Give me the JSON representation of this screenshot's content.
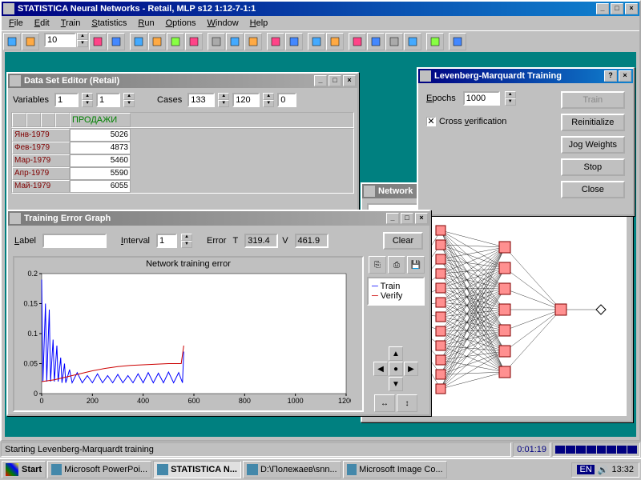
{
  "app": {
    "title": "STATISTICA Neural Networks - Retail, MLP s12 1:12-7-1:1",
    "menu": [
      "File",
      "Edit",
      "Train",
      "Statistics",
      "Run",
      "Options",
      "Window",
      "Help"
    ],
    "case_no": "10",
    "toolbar_icons": [
      "open",
      "save",
      "sep",
      "grid",
      "table",
      "sep",
      "net1",
      "net2",
      "net3",
      "net4",
      "sep",
      "sc1",
      "sc2",
      "sc3",
      "sep",
      "run",
      "stop",
      "sep",
      "chart",
      "bar",
      "sep",
      "hist",
      "plot",
      "line",
      "grid2",
      "sep",
      "tool",
      "sep",
      "arrow"
    ]
  },
  "dataset": {
    "title": "Data Set Editor (Retail)",
    "vars_label": "Variables",
    "var_a": "1",
    "var_b": "1",
    "cases_label": "Cases",
    "case_a": "133",
    "case_b": "120",
    "case_c": "0",
    "col_header": "ПРОДАЖИ",
    "rows": [
      {
        "m": "Янв-1979",
        "v": "5026"
      },
      {
        "m": "Фев-1979",
        "v": "4873"
      },
      {
        "m": "Мар-1979",
        "v": "5460"
      },
      {
        "m": "Апр-1979",
        "v": "5590"
      },
      {
        "m": "Май-1979",
        "v": "6055"
      }
    ]
  },
  "lm": {
    "title": "Levenberg-Marquardt Training",
    "epochs_label": "Epochs",
    "epochs": "1000",
    "cross_label": "Cross verification",
    "cross_checked": true,
    "buttons": [
      "Train",
      "Reinitialize",
      "Jog Weights",
      "Stop",
      "Close"
    ]
  },
  "network_win": {
    "title": "Network"
  },
  "error_graph": {
    "title": "Training Error Graph",
    "label_label": "Label",
    "label_value": "",
    "interval_label": "Interval",
    "interval": "1",
    "error_label": "Error",
    "t_label": "T",
    "t_val": "319.4",
    "v_label": "V",
    "v_val": "461.9",
    "clear": "Clear",
    "chart_title": "Network training error",
    "legend": [
      "Train",
      "Verify"
    ],
    "chart": {
      "type": "line",
      "xlim": [
        0,
        1200
      ],
      "xticks": [
        0,
        200,
        400,
        600,
        800,
        1000,
        1200
      ],
      "ylim": [
        0,
        0.2
      ],
      "yticks": [
        0,
        0.05,
        0.1,
        0.15,
        0.2
      ],
      "train_color": "#0000ff",
      "verify_color": "#cc0000",
      "bg": "#ffffff",
      "verify_points": [
        [
          0,
          0.02
        ],
        [
          50,
          0.023
        ],
        [
          100,
          0.028
        ],
        [
          150,
          0.033
        ],
        [
          200,
          0.038
        ],
        [
          250,
          0.042
        ],
        [
          300,
          0.045
        ],
        [
          350,
          0.047
        ],
        [
          400,
          0.048
        ],
        [
          450,
          0.049
        ],
        [
          500,
          0.05
        ],
        [
          550,
          0.05
        ],
        [
          560,
          0.08
        ]
      ],
      "train_points": [
        [
          0,
          0.19
        ],
        [
          5,
          0.02
        ],
        [
          15,
          0.15
        ],
        [
          20,
          0.02
        ],
        [
          30,
          0.14
        ],
        [
          35,
          0.02
        ],
        [
          45,
          0.09
        ],
        [
          50,
          0.02
        ],
        [
          60,
          0.08
        ],
        [
          65,
          0.02
        ],
        [
          75,
          0.06
        ],
        [
          80,
          0.018
        ],
        [
          90,
          0.05
        ],
        [
          95,
          0.018
        ],
        [
          110,
          0.04
        ],
        [
          120,
          0.018
        ],
        [
          140,
          0.035
        ],
        [
          160,
          0.018
        ],
        [
          180,
          0.03
        ],
        [
          200,
          0.018
        ],
        [
          220,
          0.033
        ],
        [
          240,
          0.018
        ],
        [
          260,
          0.03
        ],
        [
          280,
          0.018
        ],
        [
          300,
          0.032
        ],
        [
          320,
          0.018
        ],
        [
          340,
          0.03
        ],
        [
          360,
          0.018
        ],
        [
          380,
          0.033
        ],
        [
          400,
          0.018
        ],
        [
          420,
          0.035
        ],
        [
          440,
          0.018
        ],
        [
          460,
          0.034
        ],
        [
          480,
          0.018
        ],
        [
          500,
          0.036
        ],
        [
          520,
          0.018
        ],
        [
          540,
          0.035
        ],
        [
          555,
          0.018
        ],
        [
          560,
          0.07
        ]
      ]
    }
  },
  "network_diagram": {
    "input_color": "#ffd0a0",
    "input_stroke": "#000",
    "hidden_color": "#ff9090",
    "hidden_stroke": "#800000",
    "output_color": "#90ff90",
    "edge_color": "#000",
    "layers": [
      1,
      12,
      7,
      1,
      1
    ]
  },
  "status": {
    "msg": "Starting Levenberg-Marquardt training",
    "time": "0:01:19"
  },
  "taskbar": {
    "start": "Start",
    "tasks": [
      {
        "label": "Microsoft PowerPoi...",
        "active": false
      },
      {
        "label": "STATISTICA N...",
        "active": true
      },
      {
        "label": "D:\\Полежаев\\snn...",
        "active": false
      },
      {
        "label": "Microsoft Image Co...",
        "active": false
      }
    ],
    "lang": "EN",
    "clock": "13:32"
  }
}
